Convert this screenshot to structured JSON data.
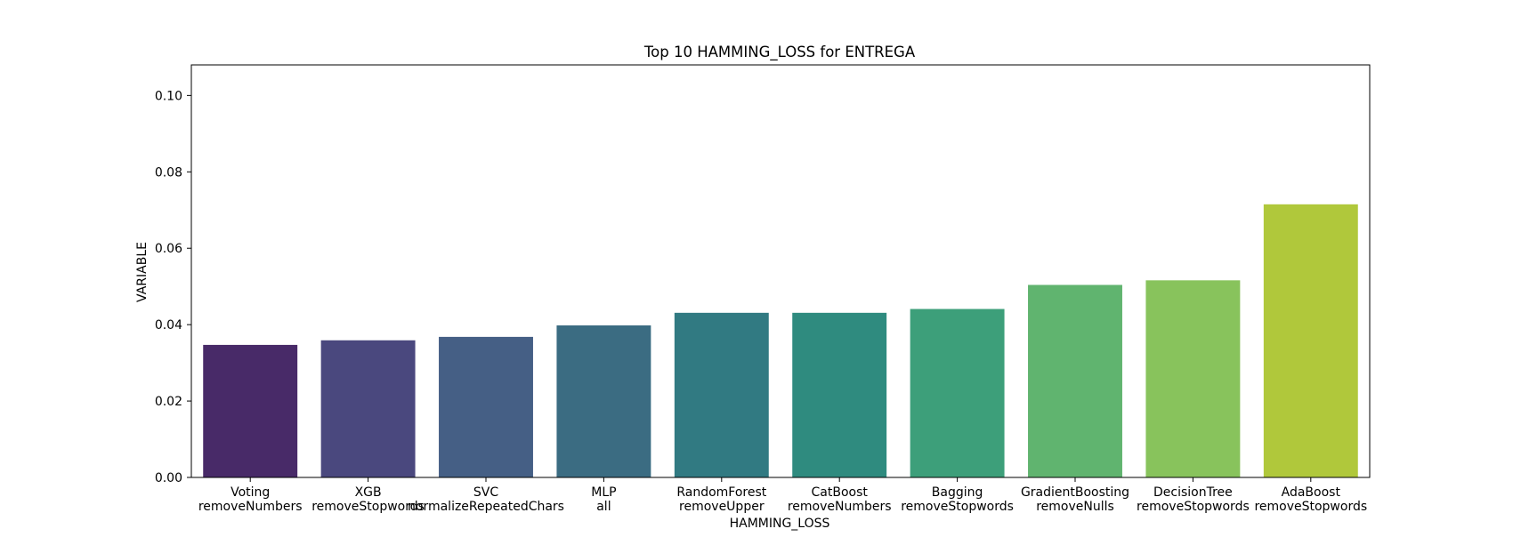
{
  "chart_data": {
    "type": "bar",
    "title": "Top 10 HAMMING_LOSS for ENTREGA",
    "xlabel": "HAMMING_LOSS",
    "ylabel": "VARIABLE",
    "ylim": [
      0,
      0.108
    ],
    "yticks": [
      "0.00",
      "0.02",
      "0.04",
      "0.06",
      "0.08",
      "0.10"
    ],
    "grid": false,
    "categories": [
      [
        "Voting",
        "removeNumbers"
      ],
      [
        "XGB",
        "removeStopwords"
      ],
      [
        "SVC",
        "normalizeRepeatedChars"
      ],
      [
        "MLP",
        "all"
      ],
      [
        "RandomForest",
        "removeUpper"
      ],
      [
        "CatBoost",
        "removeNumbers"
      ],
      [
        "Bagging",
        "removeStopwords"
      ],
      [
        "GradientBoosting",
        "removeNulls"
      ],
      [
        "DecisionTree",
        "removeStopwords"
      ],
      [
        "AdaBoost",
        "removeStopwords"
      ]
    ],
    "values": [
      0.0347,
      0.0359,
      0.0368,
      0.0398,
      0.0431,
      0.0431,
      0.0441,
      0.0504,
      0.0516,
      0.0715
    ],
    "colors": [
      "#482a68",
      "#4a487e",
      "#455f85",
      "#3b6c82",
      "#317a82",
      "#2f8b7f",
      "#3d9f7a",
      "#60b46f",
      "#88c35c",
      "#b0c83b"
    ]
  }
}
